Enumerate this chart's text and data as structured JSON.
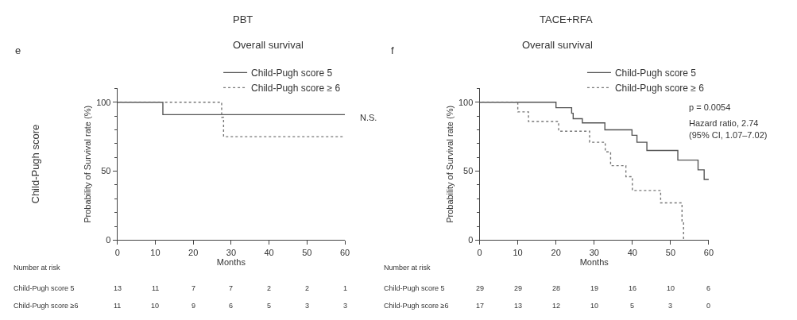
{
  "chart_data": [
    {
      "type": "step",
      "title": "PBT",
      "subtitle": "Overall survival",
      "xlabel": "Months",
      "ylabel": "Probability of Survival rate (%)",
      "xlim": [
        0,
        60
      ],
      "xticks": [
        0,
        10,
        20,
        30,
        40,
        50,
        60
      ],
      "ylim": [
        0,
        110
      ],
      "yticks": [
        0,
        50,
        100
      ],
      "legend": "top right",
      "series": [
        {
          "name": "Child-Pugh score 5",
          "color": "#555555",
          "line_style": "solid",
          "x": [
            0,
            12,
            60
          ],
          "values": [
            100,
            91,
            91
          ]
        },
        {
          "name": "Child-Pugh score ≥ 6",
          "color": "#777777",
          "line_style": "dotted",
          "x": [
            0,
            27.5,
            28,
            60
          ],
          "values": [
            100,
            89,
            75,
            75
          ]
        }
      ],
      "annotations": [
        "e",
        "Child-Pugh score",
        "N.S.",
        "Number at risk",
        "Child-Pugh score 5",
        "13",
        "11",
        "7",
        "7",
        "2",
        "2",
        "1",
        "Child-Pugh score ≥6",
        "11",
        "10",
        "9",
        "6",
        "5",
        "3",
        "3"
      ]
    },
    {
      "type": "step",
      "title": "TACE+RFA",
      "subtitle": "Overall survival",
      "xlabel": "Months",
      "ylabel": "Probability of Survival rate (%)",
      "xlim": [
        0,
        60
      ],
      "xticks": [
        0,
        10,
        20,
        30,
        40,
        50,
        60
      ],
      "ylim": [
        0,
        110
      ],
      "yticks": [
        0,
        50,
        100
      ],
      "legend": "top right",
      "series": [
        {
          "name": "Child-Pugh score 5",
          "color": "#555555",
          "line_style": "solid",
          "x": [
            0,
            20,
            24.1,
            24.5,
            26.9,
            32.8,
            39.9,
            41.2,
            43.8,
            51.9,
            57.2,
            58.8,
            60
          ],
          "values": [
            100,
            96,
            92,
            88,
            85,
            80,
            76,
            71,
            65,
            58,
            51,
            44,
            44
          ]
        },
        {
          "name": "Child-Pugh score ≥ 6",
          "color": "#777777",
          "line_style": "dotted",
          "x": [
            0,
            10,
            12.8,
            20.7,
            28.8,
            32.9,
            34.3,
            38.3,
            40,
            47.4,
            53,
            53.4
          ],
          "values": [
            100,
            93,
            86,
            79,
            71,
            64,
            54,
            46,
            36,
            27,
            13,
            0
          ]
        }
      ],
      "annotations": [
        "f",
        "p = 0.0054",
        "Hazard ratio, 2.74",
        "(95% CI, 1.07–7.02)",
        "Number at risk",
        "Child-Pugh score 5",
        "29",
        "29",
        "28",
        "19",
        "16",
        "10",
        "6",
        "Child-Pugh score ≥6",
        "17",
        "13",
        "12",
        "10",
        "5",
        "3",
        "0"
      ]
    }
  ]
}
